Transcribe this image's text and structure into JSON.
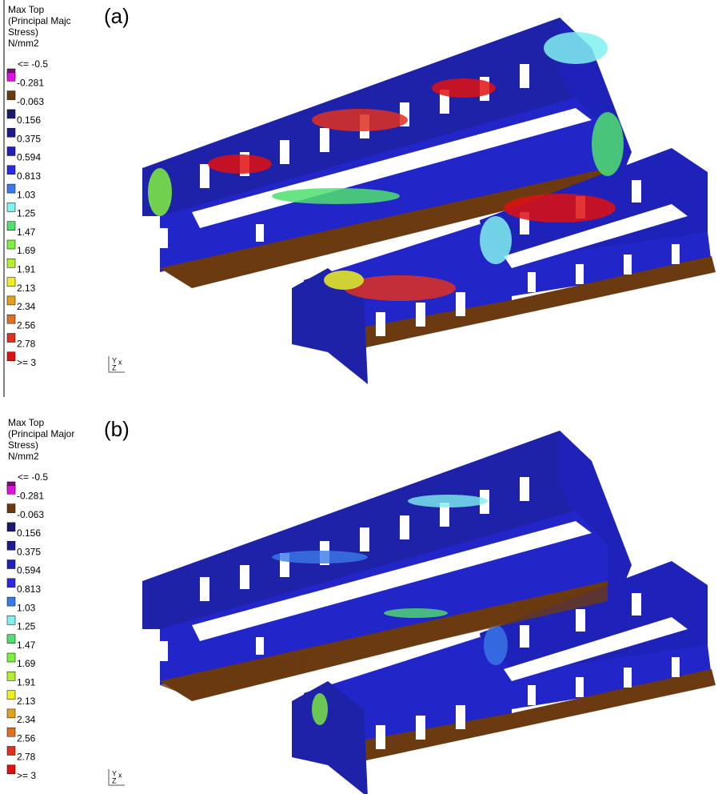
{
  "panels": [
    {
      "label": "(a)",
      "legend_title": [
        "Max Top",
        "(Principal Majc",
        "Stress)",
        "N/mm2"
      ],
      "legend": [
        {
          "label": "<= -0.5",
          "color": "#7a1070"
        },
        {
          "label": "-0.281",
          "color": "#e010e0"
        },
        {
          "label": "-0.063",
          "color": "#6b3a10"
        },
        {
          "label": "0.156",
          "color": "#1a1a6e"
        },
        {
          "label": "0.375",
          "color": "#1c1c8e"
        },
        {
          "label": "0.594",
          "color": "#2020c0"
        },
        {
          "label": "0.813",
          "color": "#2a2ae8"
        },
        {
          "label": "1.03",
          "color": "#3a7ae8"
        },
        {
          "label": "1.25",
          "color": "#80f0f0"
        },
        {
          "label": "1.47",
          "color": "#50e070"
        },
        {
          "label": "1.69",
          "color": "#80f040"
        },
        {
          "label": "1.91",
          "color": "#b0f030"
        },
        {
          "label": "2.13",
          "color": "#f0f020"
        },
        {
          "label": "2.34",
          "color": "#e0a020"
        },
        {
          "label": "2.56",
          "color": "#e07020"
        },
        {
          "label": "2.78",
          "color": "#e03020"
        },
        {
          "label": ">= 3",
          "color": "#e01010"
        }
      ],
      "axis_triad": [
        "Y",
        "x",
        "Z"
      ]
    },
    {
      "label": "(b)",
      "legend_title": [
        "Max Top",
        "(Principal Major",
        "Stress)",
        "N/mm2"
      ],
      "legend": [
        {
          "label": "<= -0.5",
          "color": "#7a1070"
        },
        {
          "label": "-0.281",
          "color": "#e010e0"
        },
        {
          "label": "-0.063",
          "color": "#6b3a10"
        },
        {
          "label": "0.156",
          "color": "#1a1a6e"
        },
        {
          "label": "0.375",
          "color": "#1c1c8e"
        },
        {
          "label": "0.594",
          "color": "#2020c0"
        },
        {
          "label": "0.813",
          "color": "#2a2ae8"
        },
        {
          "label": "1.03",
          "color": "#3a7ae8"
        },
        {
          "label": "1.25",
          "color": "#80f0f0"
        },
        {
          "label": "1.47",
          "color": "#50e070"
        },
        {
          "label": "1.69",
          "color": "#80f040"
        },
        {
          "label": "1.91",
          "color": "#b0f030"
        },
        {
          "label": "2.13",
          "color": "#f0f020"
        },
        {
          "label": "2.34",
          "color": "#e0a020"
        },
        {
          "label": "2.56",
          "color": "#e07020"
        },
        {
          "label": "2.78",
          "color": "#e03020"
        },
        {
          "label": ">= 3",
          "color": "#e01010"
        }
      ],
      "axis_triad": [
        "Y",
        "x",
        "Z"
      ]
    }
  ]
}
